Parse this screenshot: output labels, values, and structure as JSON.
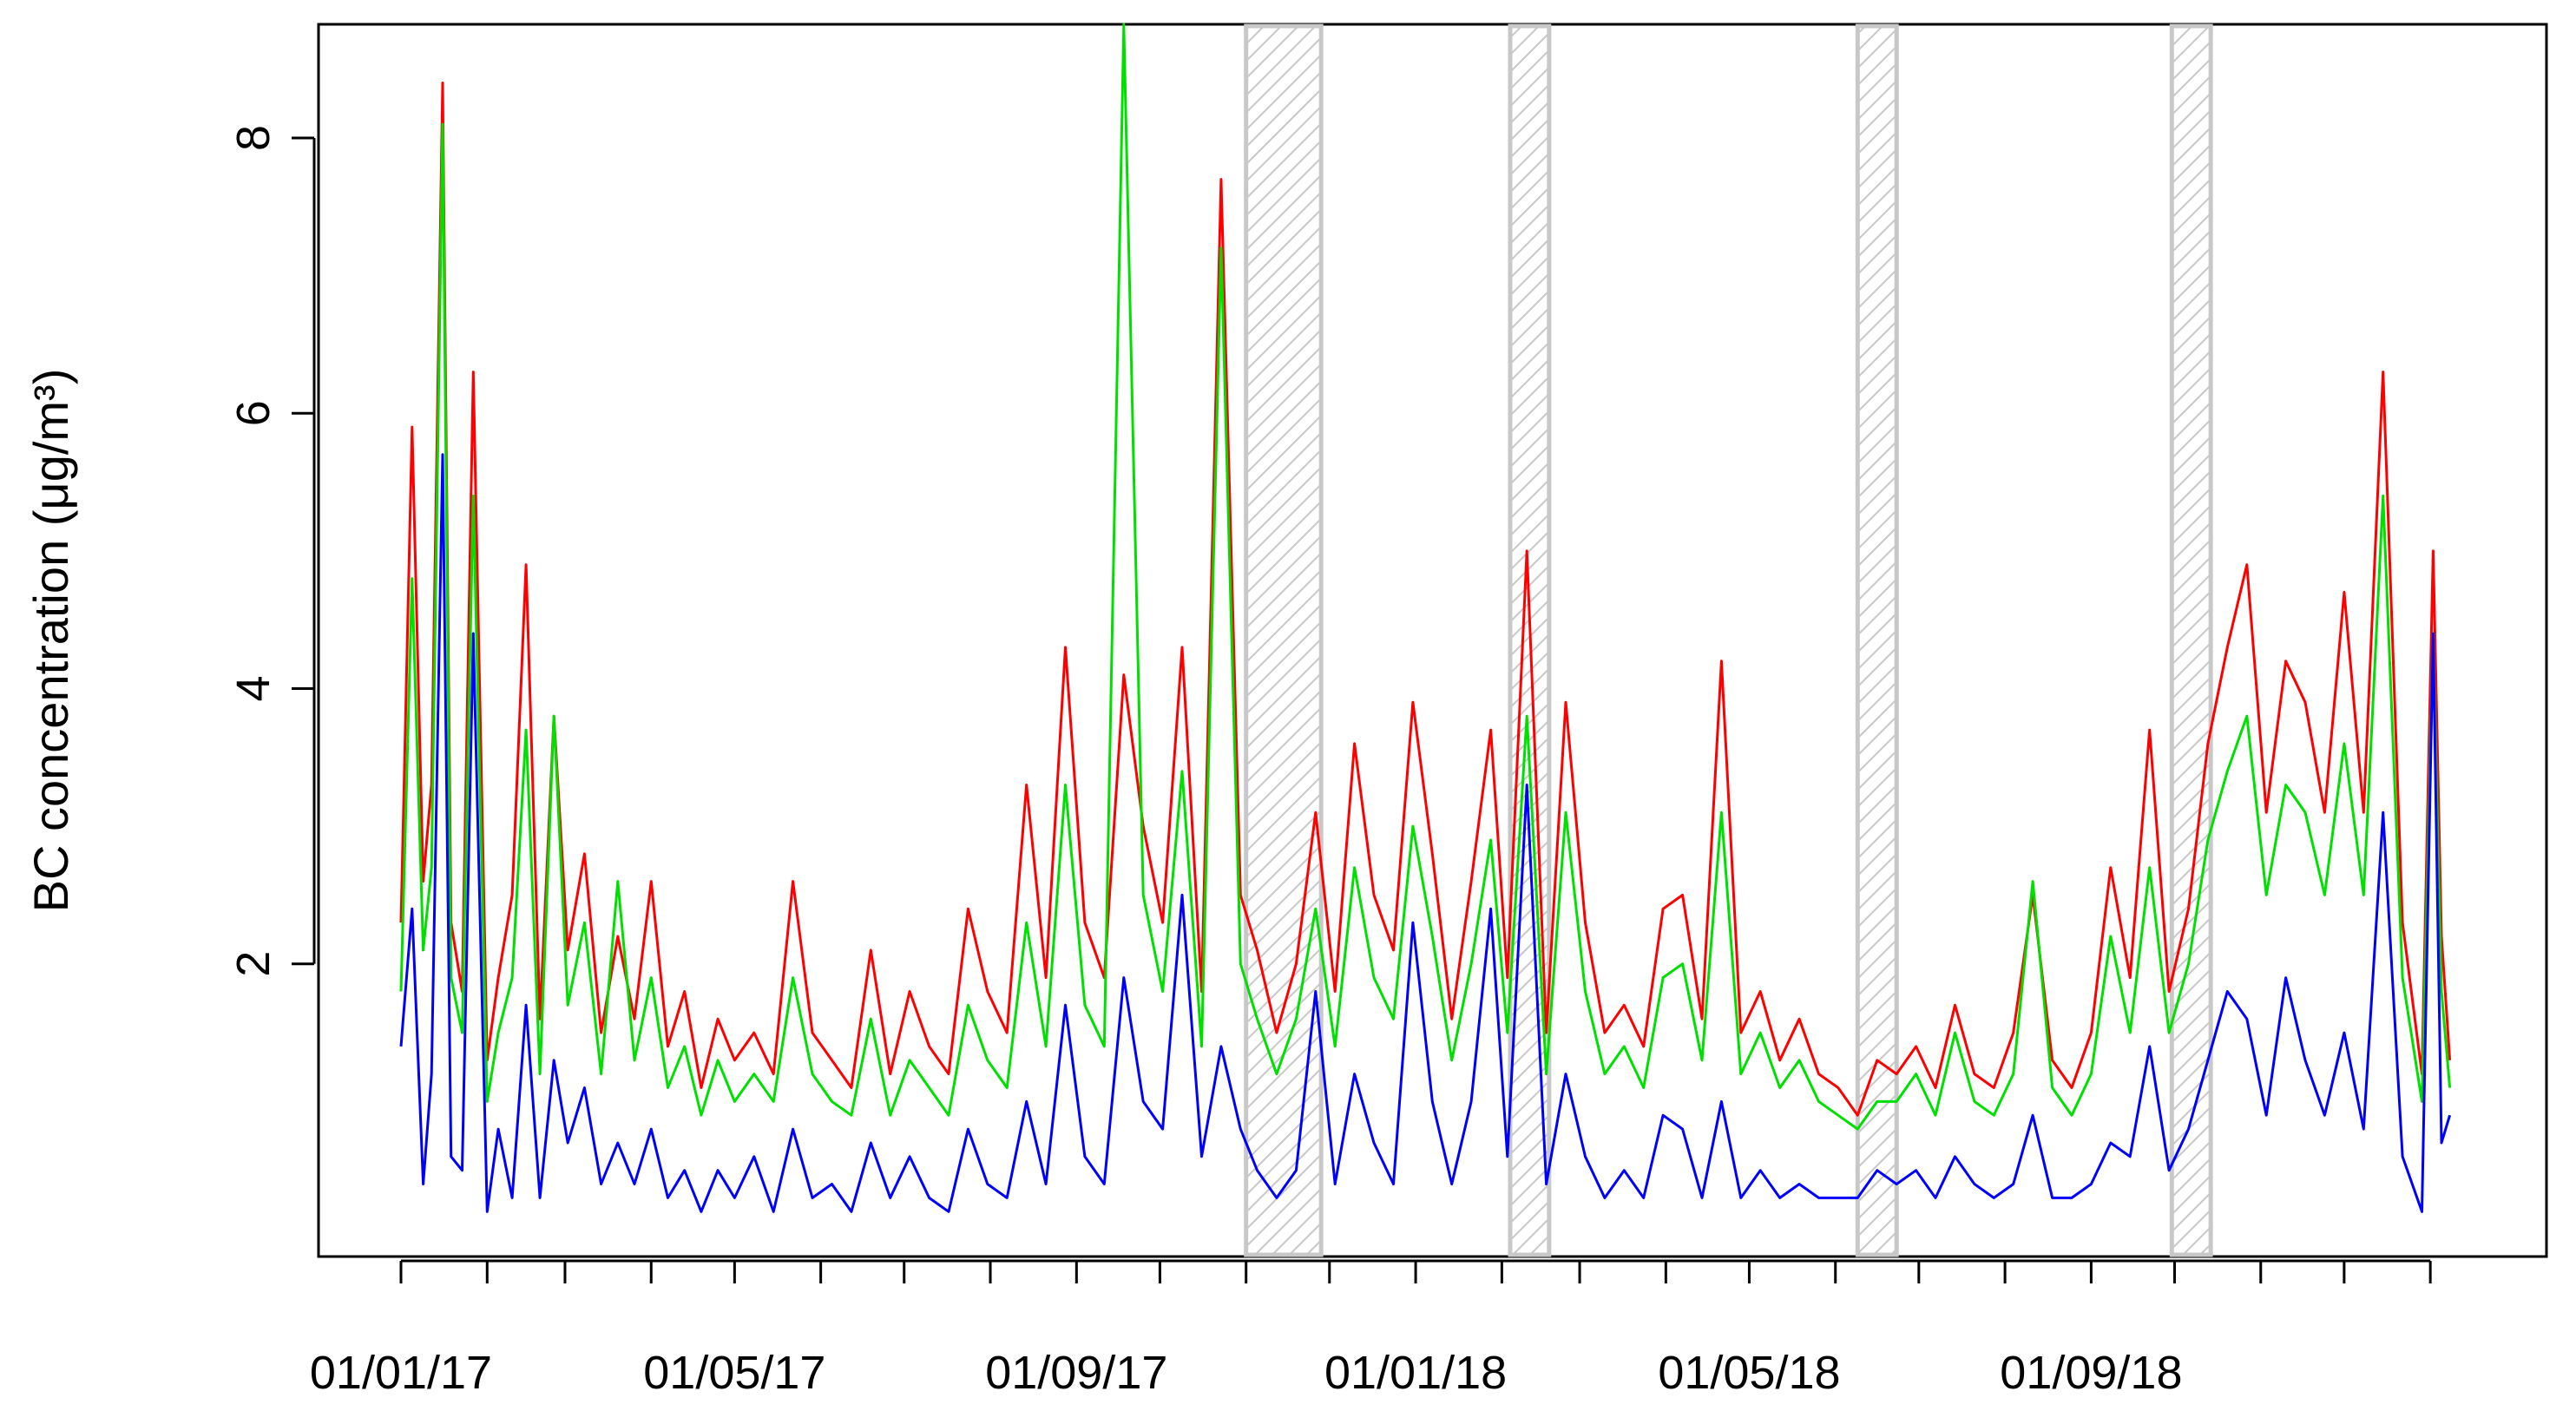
{
  "chart_data": {
    "type": "line",
    "title": "",
    "xlabel": "",
    "ylabel": "BC concentration (μg/m³)",
    "x_range": [
      "2017-01-01",
      "2019-01-15"
    ],
    "ylim": [
      0,
      8.75
    ],
    "y_ticks": [
      2,
      4,
      6,
      8
    ],
    "y_tick_labels": [
      "2",
      "4",
      "6",
      "8"
    ],
    "x_tick_dates": [
      "2017-01-01",
      "2017-02-01",
      "2017-03-01",
      "2017-04-01",
      "2017-05-01",
      "2017-06-01",
      "2017-07-01",
      "2017-08-01",
      "2017-09-01",
      "2017-10-01",
      "2017-11-01",
      "2017-12-01",
      "2018-01-01",
      "2018-02-01",
      "2018-03-01",
      "2018-04-01",
      "2018-05-01",
      "2018-06-01",
      "2018-07-01",
      "2018-08-01",
      "2018-09-01",
      "2018-10-01",
      "2018-11-01",
      "2018-12-01",
      "2019-01-01"
    ],
    "x_tick_labels": [
      {
        "date": "2017-01-01",
        "label": "01/01/17"
      },
      {
        "date": "2017-05-01",
        "label": "01/05/17"
      },
      {
        "date": "2017-09-01",
        "label": "01/09/17"
      },
      {
        "date": "2018-01-01",
        "label": "01/01/18"
      },
      {
        "date": "2018-05-01",
        "label": "01/05/18"
      },
      {
        "date": "2018-09-01",
        "label": "01/09/18"
      }
    ],
    "gap_periods": [
      {
        "start": "2017-11-01",
        "end": "2017-11-28"
      },
      {
        "start": "2018-02-04",
        "end": "2018-02-18"
      },
      {
        "start": "2018-06-09",
        "end": "2018-06-23"
      },
      {
        "start": "2018-09-30",
        "end": "2018-10-14"
      }
    ],
    "grid": false,
    "legend": "none",
    "series": [
      {
        "color": "#ff0000",
        "x": [
          "2017-01-01",
          "2017-01-05",
          "2017-01-09",
          "2017-01-12",
          "2017-01-16",
          "2017-01-19",
          "2017-01-23",
          "2017-01-27",
          "2017-02-01",
          "2017-02-05",
          "2017-02-10",
          "2017-02-15",
          "2017-02-20",
          "2017-02-25",
          "2017-03-02",
          "2017-03-08",
          "2017-03-14",
          "2017-03-20",
          "2017-03-26",
          "2017-04-01",
          "2017-04-07",
          "2017-04-13",
          "2017-04-19",
          "2017-04-25",
          "2017-05-01",
          "2017-05-08",
          "2017-05-15",
          "2017-05-22",
          "2017-05-29",
          "2017-06-05",
          "2017-06-12",
          "2017-06-19",
          "2017-06-26",
          "2017-07-03",
          "2017-07-10",
          "2017-07-17",
          "2017-07-24",
          "2017-07-31",
          "2017-08-07",
          "2017-08-14",
          "2017-08-21",
          "2017-08-28",
          "2017-09-04",
          "2017-09-11",
          "2017-09-18",
          "2017-09-25",
          "2017-10-02",
          "2017-10-09",
          "2017-10-16",
          "2017-10-23",
          "2017-10-30",
          "2017-11-05",
          "2017-11-12",
          "2017-11-19",
          "2017-11-26",
          "2017-12-03",
          "2017-12-10",
          "2017-12-17",
          "2017-12-24",
          "2017-12-31",
          "2018-01-07",
          "2018-01-14",
          "2018-01-21",
          "2018-01-28",
          "2018-02-03",
          "2018-02-10",
          "2018-02-17",
          "2018-02-24",
          "2018-03-03",
          "2018-03-10",
          "2018-03-17",
          "2018-03-24",
          "2018-03-31",
          "2018-04-07",
          "2018-04-14",
          "2018-04-21",
          "2018-04-28",
          "2018-05-05",
          "2018-05-12",
          "2018-05-19",
          "2018-05-26",
          "2018-06-02",
          "2018-06-09",
          "2018-06-16",
          "2018-06-23",
          "2018-06-30",
          "2018-07-07",
          "2018-07-14",
          "2018-07-21",
          "2018-07-28",
          "2018-08-04",
          "2018-08-11",
          "2018-08-18",
          "2018-08-25",
          "2018-09-01",
          "2018-09-08",
          "2018-09-15",
          "2018-09-22",
          "2018-09-29",
          "2018-10-06",
          "2018-10-13",
          "2018-10-20",
          "2018-10-27",
          "2018-11-03",
          "2018-11-10",
          "2018-11-17",
          "2018-11-24",
          "2018-12-01",
          "2018-12-08",
          "2018-12-15",
          "2018-12-22",
          "2018-12-29",
          "2019-01-02",
          "2019-01-05",
          "2019-01-08"
        ],
        "y": [
          2.3,
          5.9,
          2.6,
          3.3,
          8.4,
          2.3,
          1.8,
          6.3,
          1.3,
          1.9,
          2.5,
          4.9,
          1.6,
          3.8,
          2.1,
          2.8,
          1.5,
          2.2,
          1.6,
          2.6,
          1.4,
          1.8,
          1.1,
          1.6,
          1.3,
          1.5,
          1.2,
          2.6,
          1.5,
          1.3,
          1.1,
          2.1,
          1.2,
          1.8,
          1.4,
          1.2,
          2.4,
          1.8,
          1.5,
          3.3,
          1.9,
          4.3,
          2.3,
          1.9,
          4.1,
          3.0,
          2.3,
          4.3,
          1.8,
          7.7,
          2.5,
          2.1,
          1.5,
          2.0,
          3.1,
          1.8,
          3.6,
          2.5,
          2.1,
          3.9,
          2.8,
          1.6,
          2.6,
          3.7,
          1.9,
          5.0,
          1.5,
          3.9,
          2.3,
          1.5,
          1.7,
          1.4,
          2.4,
          2.5,
          1.6,
          4.2,
          1.5,
          1.8,
          1.3,
          1.6,
          1.2,
          1.1,
          0.9,
          1.3,
          1.2,
          1.4,
          1.1,
          1.7,
          1.2,
          1.1,
          1.5,
          2.5,
          1.3,
          1.1,
          1.5,
          2.7,
          1.9,
          3.7,
          1.8,
          2.4,
          3.6,
          4.3,
          4.9,
          3.1,
          4.2,
          3.9,
          3.1,
          4.7,
          3.1,
          6.3,
          2.3,
          1.2,
          5.0,
          2.2,
          1.3
        ]
      },
      {
        "color": "#00e000",
        "x": [
          "2017-01-01",
          "2017-01-05",
          "2017-01-09",
          "2017-01-12",
          "2017-01-16",
          "2017-01-19",
          "2017-01-23",
          "2017-01-27",
          "2017-02-01",
          "2017-02-05",
          "2017-02-10",
          "2017-02-15",
          "2017-02-20",
          "2017-02-25",
          "2017-03-02",
          "2017-03-08",
          "2017-03-14",
          "2017-03-20",
          "2017-03-26",
          "2017-04-01",
          "2017-04-07",
          "2017-04-13",
          "2017-04-19",
          "2017-04-25",
          "2017-05-01",
          "2017-05-08",
          "2017-05-15",
          "2017-05-22",
          "2017-05-29",
          "2017-06-05",
          "2017-06-12",
          "2017-06-19",
          "2017-06-26",
          "2017-07-03",
          "2017-07-10",
          "2017-07-17",
          "2017-07-24",
          "2017-07-31",
          "2017-08-07",
          "2017-08-14",
          "2017-08-21",
          "2017-08-28",
          "2017-09-04",
          "2017-09-11",
          "2017-09-18",
          "2017-09-25",
          "2017-10-02",
          "2017-10-09",
          "2017-10-16",
          "2017-10-23",
          "2017-10-30",
          "2017-11-05",
          "2017-11-12",
          "2017-11-19",
          "2017-11-26",
          "2017-12-03",
          "2017-12-10",
          "2017-12-17",
          "2017-12-24",
          "2017-12-31",
          "2018-01-07",
          "2018-01-14",
          "2018-01-21",
          "2018-01-28",
          "2018-02-03",
          "2018-02-10",
          "2018-02-17",
          "2018-02-24",
          "2018-03-03",
          "2018-03-10",
          "2018-03-17",
          "2018-03-24",
          "2018-03-31",
          "2018-04-07",
          "2018-04-14",
          "2018-04-21",
          "2018-04-28",
          "2018-05-05",
          "2018-05-12",
          "2018-05-19",
          "2018-05-26",
          "2018-06-02",
          "2018-06-09",
          "2018-06-16",
          "2018-06-23",
          "2018-06-30",
          "2018-07-07",
          "2018-07-14",
          "2018-07-21",
          "2018-07-28",
          "2018-08-04",
          "2018-08-11",
          "2018-08-18",
          "2018-08-25",
          "2018-09-01",
          "2018-09-08",
          "2018-09-15",
          "2018-09-22",
          "2018-09-29",
          "2018-10-06",
          "2018-10-13",
          "2018-10-20",
          "2018-10-27",
          "2018-11-03",
          "2018-11-10",
          "2018-11-17",
          "2018-11-24",
          "2018-12-01",
          "2018-12-08",
          "2018-12-15",
          "2018-12-22",
          "2018-12-29",
          "2019-01-02",
          "2019-01-05",
          "2019-01-08"
        ],
        "y": [
          1.8,
          4.8,
          2.1,
          2.7,
          8.1,
          1.9,
          1.5,
          5.4,
          1.0,
          1.5,
          1.9,
          3.7,
          1.2,
          3.8,
          1.7,
          2.3,
          1.2,
          2.6,
          1.3,
          1.9,
          1.1,
          1.4,
          0.9,
          1.3,
          1.0,
          1.2,
          1.0,
          1.9,
          1.2,
          1.0,
          0.9,
          1.6,
          0.9,
          1.3,
          1.1,
          0.9,
          1.7,
          1.3,
          1.1,
          2.3,
          1.4,
          3.3,
          1.7,
          1.4,
          9.0,
          2.5,
          1.8,
          3.4,
          1.4,
          7.2,
          2.0,
          1.6,
          1.2,
          1.6,
          2.4,
          1.4,
          2.7,
          1.9,
          1.6,
          3.0,
          2.2,
          1.3,
          2.0,
          2.9,
          1.5,
          3.8,
          1.2,
          3.1,
          1.8,
          1.2,
          1.4,
          1.1,
          1.9,
          2.0,
          1.3,
          3.1,
          1.2,
          1.5,
          1.1,
          1.3,
          1.0,
          0.9,
          0.8,
          1.0,
          1.0,
          1.2,
          0.9,
          1.5,
          1.0,
          0.9,
          1.2,
          2.6,
          1.1,
          0.9,
          1.2,
          2.2,
          1.5,
          2.7,
          1.5,
          2.0,
          2.9,
          3.4,
          3.8,
          2.5,
          3.3,
          3.1,
          2.5,
          3.6,
          2.5,
          5.4,
          1.9,
          1.0,
          4.4,
          1.8,
          1.1
        ]
      },
      {
        "color": "#0000ff",
        "x": [
          "2017-01-01",
          "2017-01-05",
          "2017-01-09",
          "2017-01-12",
          "2017-01-16",
          "2017-01-19",
          "2017-01-23",
          "2017-01-27",
          "2017-02-01",
          "2017-02-05",
          "2017-02-10",
          "2017-02-15",
          "2017-02-20",
          "2017-02-25",
          "2017-03-02",
          "2017-03-08",
          "2017-03-14",
          "2017-03-20",
          "2017-03-26",
          "2017-04-01",
          "2017-04-07",
          "2017-04-13",
          "2017-04-19",
          "2017-04-25",
          "2017-05-01",
          "2017-05-08",
          "2017-05-15",
          "2017-05-22",
          "2017-05-29",
          "2017-06-05",
          "2017-06-12",
          "2017-06-19",
          "2017-06-26",
          "2017-07-03",
          "2017-07-10",
          "2017-07-17",
          "2017-07-24",
          "2017-07-31",
          "2017-08-07",
          "2017-08-14",
          "2017-08-21",
          "2017-08-28",
          "2017-09-04",
          "2017-09-11",
          "2017-09-18",
          "2017-09-25",
          "2017-10-02",
          "2017-10-09",
          "2017-10-16",
          "2017-10-23",
          "2017-10-30",
          "2017-11-05",
          "2017-11-12",
          "2017-11-19",
          "2017-11-26",
          "2017-12-03",
          "2017-12-10",
          "2017-12-17",
          "2017-12-24",
          "2017-12-31",
          "2018-01-07",
          "2018-01-14",
          "2018-01-21",
          "2018-01-28",
          "2018-02-03",
          "2018-02-10",
          "2018-02-17",
          "2018-02-24",
          "2018-03-03",
          "2018-03-10",
          "2018-03-17",
          "2018-03-24",
          "2018-03-31",
          "2018-04-07",
          "2018-04-14",
          "2018-04-21",
          "2018-04-28",
          "2018-05-05",
          "2018-05-12",
          "2018-05-19",
          "2018-05-26",
          "2018-06-02",
          "2018-06-09",
          "2018-06-16",
          "2018-06-23",
          "2018-06-30",
          "2018-07-07",
          "2018-07-14",
          "2018-07-21",
          "2018-07-28",
          "2018-08-04",
          "2018-08-11",
          "2018-08-18",
          "2018-08-25",
          "2018-09-01",
          "2018-09-08",
          "2018-09-15",
          "2018-09-22",
          "2018-09-29",
          "2018-10-06",
          "2018-10-13",
          "2018-10-20",
          "2018-10-27",
          "2018-11-03",
          "2018-11-10",
          "2018-11-17",
          "2018-11-24",
          "2018-12-01",
          "2018-12-08",
          "2018-12-15",
          "2018-12-22",
          "2018-12-29",
          "2019-01-02",
          "2019-01-05",
          "2019-01-08"
        ],
        "y": [
          1.4,
          2.4,
          0.4,
          1.2,
          5.7,
          0.6,
          0.5,
          4.4,
          0.2,
          0.8,
          0.3,
          1.7,
          0.3,
          1.3,
          0.7,
          1.1,
          0.4,
          0.7,
          0.4,
          0.8,
          0.3,
          0.5,
          0.2,
          0.5,
          0.3,
          0.6,
          0.2,
          0.8,
          0.3,
          0.4,
          0.2,
          0.7,
          0.3,
          0.6,
          0.3,
          0.2,
          0.8,
          0.4,
          0.3,
          1.0,
          0.4,
          1.7,
          0.6,
          0.4,
          1.9,
          1.0,
          0.8,
          2.5,
          0.6,
          1.4,
          0.8,
          0.5,
          0.3,
          0.5,
          1.8,
          0.4,
          1.2,
          0.7,
          0.4,
          2.3,
          1.0,
          0.4,
          1.0,
          2.4,
          0.6,
          3.3,
          0.4,
          1.2,
          0.6,
          0.3,
          0.5,
          0.3,
          0.9,
          0.8,
          0.3,
          1.0,
          0.3,
          0.5,
          0.3,
          0.4,
          0.3,
          0.3,
          0.3,
          0.5,
          0.4,
          0.5,
          0.3,
          0.6,
          0.4,
          0.3,
          0.4,
          0.9,
          0.3,
          0.3,
          0.4,
          0.7,
          0.6,
          1.4,
          0.5,
          0.8,
          1.3,
          1.8,
          1.6,
          0.9,
          1.9,
          1.3,
          0.9,
          1.5,
          0.8,
          3.1,
          0.6,
          0.2,
          4.4,
          0.7,
          0.9
        ]
      }
    ]
  }
}
